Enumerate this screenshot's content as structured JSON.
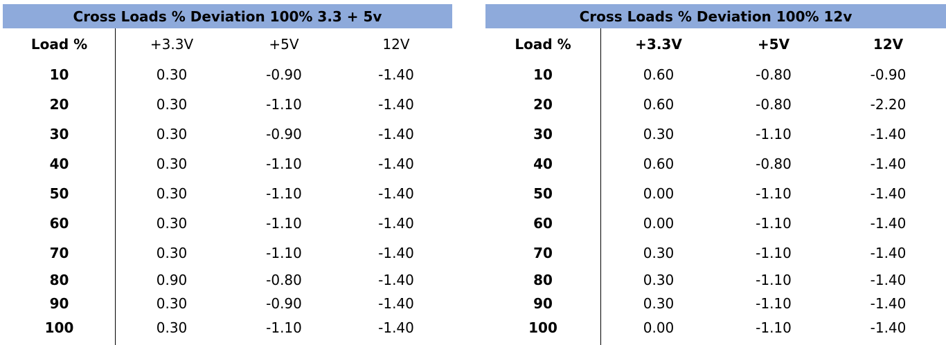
{
  "colors": {
    "title_band": "#8eaadb",
    "divider": "#000000",
    "text": "#000000"
  },
  "tables": [
    {
      "title": "Cross Loads % Deviation 100% 3.3 + 5v",
      "headers": [
        "Load %",
        "+3.3V",
        "+5V",
        "12V"
      ],
      "rows": [
        [
          "10",
          "0.30",
          "-0.90",
          "-1.40"
        ],
        [
          "20",
          "0.30",
          "-1.10",
          "-1.40"
        ],
        [
          "30",
          "0.30",
          "-0.90",
          "-1.40"
        ],
        [
          "40",
          "0.30",
          "-1.10",
          "-1.40"
        ],
        [
          "50",
          "0.30",
          "-1.10",
          "-1.40"
        ],
        [
          "60",
          "0.30",
          "-1.10",
          "-1.40"
        ],
        [
          "70",
          "0.30",
          "-1.10",
          "-1.40"
        ],
        [
          "80",
          "0.90",
          "-0.80",
          "-1.40"
        ],
        [
          "90",
          "0.30",
          "-0.90",
          "-1.40"
        ],
        [
          "100",
          "0.30",
          "-1.10",
          "-1.40"
        ]
      ]
    },
    {
      "title": "Cross Loads % Deviation 100% 12v",
      "headers": [
        "Load %",
        "+3.3V",
        "+5V",
        "12V"
      ],
      "rows": [
        [
          "10",
          "0.60",
          "-0.80",
          "-0.90"
        ],
        [
          "20",
          "0.60",
          "-0.80",
          "-2.20"
        ],
        [
          "30",
          "0.30",
          "-1.10",
          "-1.40"
        ],
        [
          "40",
          "0.60",
          "-0.80",
          "-1.40"
        ],
        [
          "50",
          "0.00",
          "-1.10",
          "-1.40"
        ],
        [
          "60",
          "0.00",
          "-1.10",
          "-1.40"
        ],
        [
          "70",
          "0.30",
          "-1.10",
          "-1.40"
        ],
        [
          "80",
          "0.30",
          "-1.10",
          "-1.40"
        ],
        [
          "90",
          "0.30",
          "-1.10",
          "-1.40"
        ],
        [
          "100",
          "0.00",
          "-1.10",
          "-1.40"
        ]
      ]
    }
  ]
}
